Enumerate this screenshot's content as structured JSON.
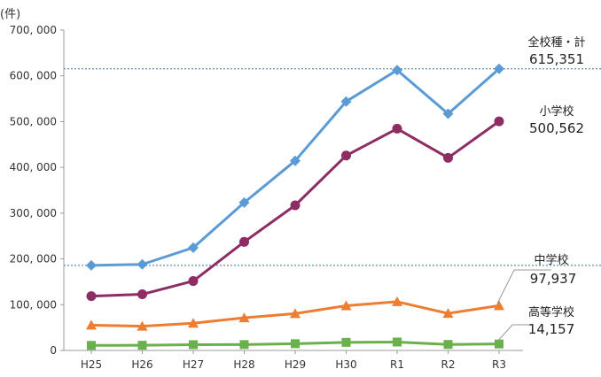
{
  "chart_data": {
    "type": "line",
    "title": "",
    "xlabel": "",
    "ylabel": "(件)",
    "ylim": [
      0,
      700000
    ],
    "y_ticks": [
      0,
      100000,
      200000,
      300000,
      400000,
      500000,
      600000,
      700000
    ],
    "y_tick_labels": [
      "0",
      "100, 000",
      "200, 000",
      "300, 000",
      "400, 000",
      "500, 000",
      "600, 000",
      "700, 000"
    ],
    "categories": [
      "H25",
      "H26",
      "H27",
      "H28",
      "H29",
      "H30",
      "R1",
      "R2",
      "R3"
    ],
    "grid": false,
    "legend": "none",
    "series": [
      {
        "name": "全校種・計",
        "end_label": "615,351",
        "color": "#5b9bd5",
        "marker": "diamond",
        "values": [
          185803,
          188057,
          224540,
          323143,
          414378,
          543933,
          612496,
          517163,
          615351
        ]
      },
      {
        "name": "小学校",
        "end_label": "500,562",
        "color": "#8e2c64",
        "marker": "circle",
        "values": [
          118748,
          122734,
          151692,
          237256,
          317121,
          425844,
          484545,
          420897,
          500562
        ]
      },
      {
        "name": "中学校",
        "end_label": "97,937",
        "color": "#ed7d31",
        "marker": "triangle",
        "values": [
          55248,
          52971,
          59502,
          71309,
          80424,
          97704,
          106524,
          80877,
          97937
        ]
      },
      {
        "name": "高等学校",
        "end_label": "14,157",
        "color": "#6ab04c",
        "marker": "square",
        "values": [
          11039,
          11404,
          12664,
          12874,
          14789,
          17709,
          18352,
          13126,
          14157
        ]
      }
    ],
    "reference_lines": [
      {
        "value": 615351,
        "color": "#3a6fb0"
      },
      {
        "value": 185803,
        "color": "#3a6fb0"
      }
    ]
  }
}
